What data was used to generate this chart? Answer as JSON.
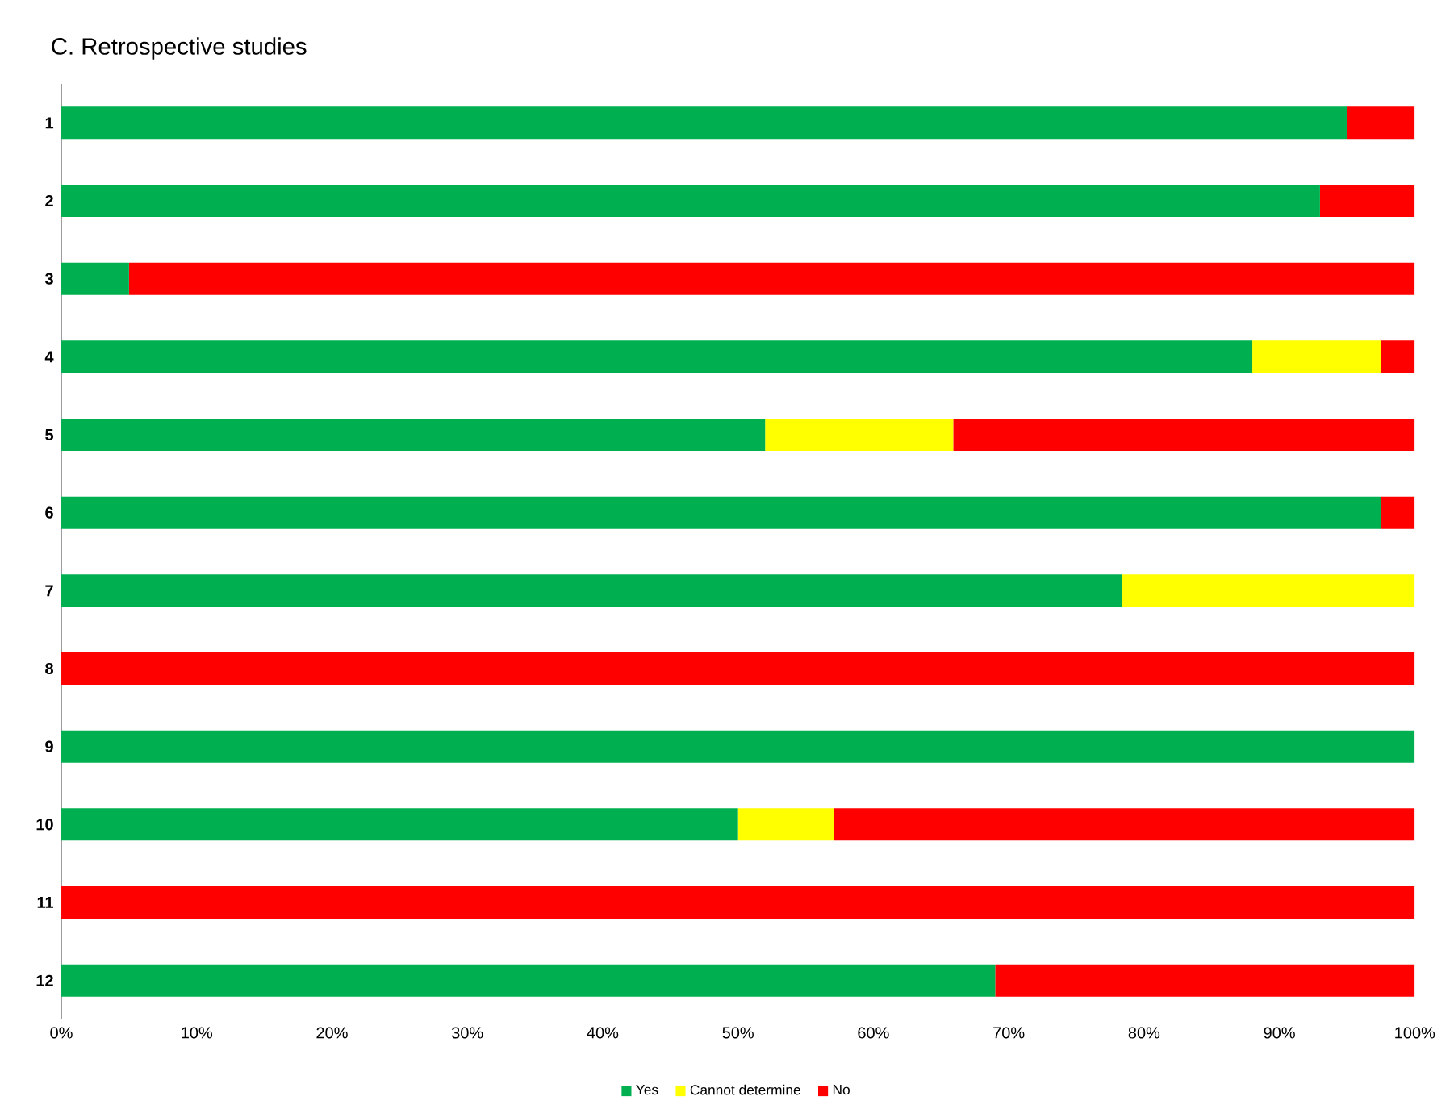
{
  "chart_data": {
    "type": "bar",
    "orientation": "horizontal",
    "stacked": true,
    "title": "C. Retrospective studies",
    "categories": [
      "1",
      "2",
      "3",
      "4",
      "5",
      "6",
      "7",
      "8",
      "9",
      "10",
      "11",
      "12"
    ],
    "series": [
      {
        "name": "Yes",
        "color": "#00b050",
        "values": [
          95,
          93,
          5,
          88,
          52,
          97.5,
          78.4,
          0,
          100,
          50,
          0,
          69
        ]
      },
      {
        "name": "Cannot determine",
        "color": "#ffff00",
        "values": [
          0,
          0,
          0,
          9.5,
          13.9,
          0,
          21.6,
          0,
          0,
          7.1,
          0,
          0
        ]
      },
      {
        "name": "No",
        "color": "#ff0000",
        "values": [
          5,
          7,
          95,
          2.5,
          34.1,
          2.5,
          0,
          100,
          0,
          42.9,
          100,
          31
        ]
      }
    ],
    "xlim": [
      0,
      100
    ],
    "xticks": [
      {
        "value": 0,
        "label": "0%"
      },
      {
        "value": 10,
        "label": "10%"
      },
      {
        "value": 20,
        "label": "20%"
      },
      {
        "value": 30,
        "label": "30%"
      },
      {
        "value": 40,
        "label": "40%"
      },
      {
        "value": 50,
        "label": "50%"
      },
      {
        "value": 60,
        "label": "60%"
      },
      {
        "value": 70,
        "label": "70%"
      },
      {
        "value": 80,
        "label": "80%"
      },
      {
        "value": 90,
        "label": "90%"
      },
      {
        "value": 100,
        "label": "100%"
      }
    ],
    "legend": "bottom"
  }
}
